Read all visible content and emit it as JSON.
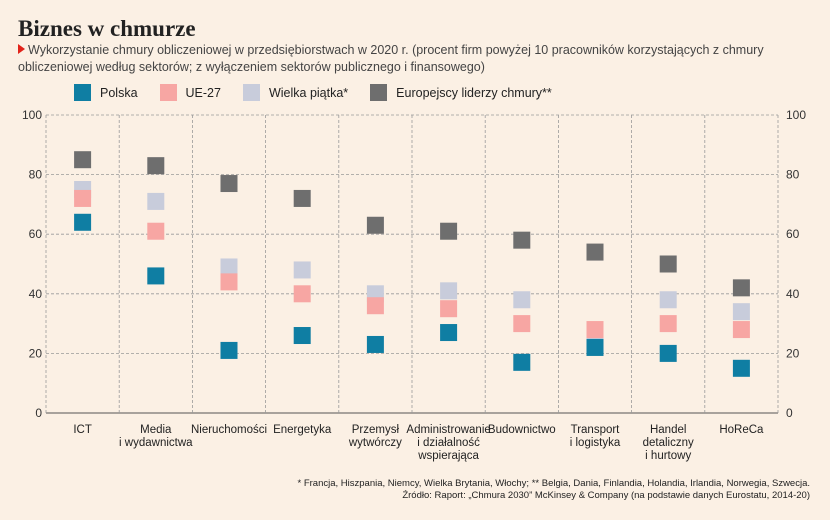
{
  "header": {
    "title": "Biznes w chmurze",
    "subtitle": "Wykorzystanie chmury obliczeniowej w przedsiębiorstwach w 2020 r. (procent firm powyżej 10 pracowników korzystających z chmury obliczeniowej według sektorów; z wyłączeniem sektorów publicznego i finansowego)"
  },
  "footnote": {
    "line1": "* Francja, Hiszpania, Niemcy, Wielka Brytania, Włochy; ** Belgia, Dania, Finlandia, Holandia, Irlandia, Norwegia, Szwecja.",
    "line2": "Źródło: Raport: „Chmura 2030” McKinsey & Company (na podstawie danych Eurostatu, 2014-20)"
  },
  "chart_data": {
    "type": "scatter",
    "ylim": [
      0,
      100
    ],
    "yticks": [
      0,
      20,
      40,
      60,
      80,
      100
    ],
    "grid": true,
    "legend_position": "top",
    "categories": [
      [
        "ICT"
      ],
      [
        "Media",
        "i wydawnictwa"
      ],
      [
        "Nieruchomości"
      ],
      [
        "Energetyka"
      ],
      [
        "Przemysł",
        "wytwórczy"
      ],
      [
        "Administrowanie",
        "i działalność",
        "wspierająca"
      ],
      [
        "Budownictwo"
      ],
      [
        "Transport",
        "i logistyka"
      ],
      [
        "Handel",
        "detaliczny",
        "i hurtowy"
      ],
      [
        "HoReCa"
      ]
    ],
    "series": [
      {
        "name": "Polska",
        "color": "#0f7ea3",
        "values": [
          64,
          46,
          21,
          26,
          23,
          27,
          17,
          22,
          20,
          15
        ]
      },
      {
        "name": "UE-27",
        "color": "#f7a6a3",
        "values": [
          72,
          61,
          44,
          40,
          36,
          35,
          30,
          28,
          30,
          28
        ]
      },
      {
        "name": "Wielka piątka*",
        "color": "#c8ccdb",
        "values": [
          75,
          71,
          49,
          48,
          40,
          41,
          38,
          26,
          38,
          34
        ]
      },
      {
        "name": "Europejscy liderzy chmury**",
        "color": "#6e6e6e",
        "values": [
          85,
          83,
          77,
          72,
          63,
          61,
          58,
          54,
          50,
          42
        ]
      }
    ]
  }
}
